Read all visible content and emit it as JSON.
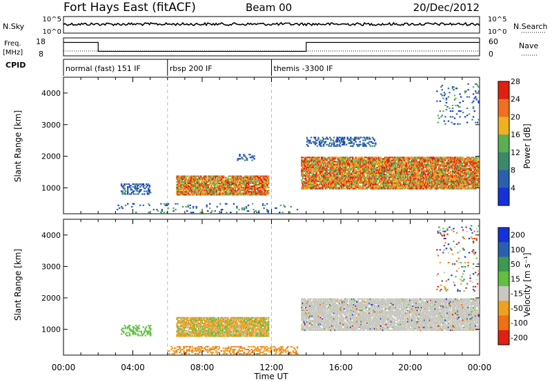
{
  "header": {
    "station": "Fort Hays East (fitACF)",
    "beam": "Beam 00",
    "date": "20/Dec/2012"
  },
  "top_panels": {
    "nsky_label": "N.Sky",
    "nsearch_label": "N.Search",
    "freq_label": "Freq.",
    "freq_unit": "[MHz]",
    "nave_label": "Nave",
    "cpid_label": "CPID",
    "nsky_ticks": [
      "10^5",
      "10^0"
    ],
    "nsearch_ticks": [
      "10^5",
      "10^0"
    ],
    "freq_ticks": [
      "18",
      "8"
    ],
    "nave_ticks": [
      "60",
      "0"
    ],
    "freq_steps": [
      {
        "start": 0,
        "end": 2,
        "level": 0.75
      },
      {
        "start": 2,
        "end": 14,
        "level": 0.25
      },
      {
        "start": 14,
        "end": 24,
        "level": 0.75
      }
    ]
  },
  "cpid_segments": [
    {
      "start_hour": 0,
      "label": "normal (fast) 151 IF"
    },
    {
      "start_hour": 6,
      "label": "rbsp 200 IF"
    },
    {
      "start_hour": 12,
      "label": "themis -3300 IF"
    }
  ],
  "chart_data": [
    {
      "type": "heatmap",
      "name": "power",
      "ylabel": "Slant Range [km]",
      "xlabel": "Time UT",
      "xlim": [
        0,
        24
      ],
      "ylim": [
        180,
        4500
      ],
      "yticks": [
        "1000",
        "2000",
        "3000",
        "4000"
      ],
      "xticks": [
        "00:00",
        "04:00",
        "08:00",
        "12:00",
        "16:00",
        "20:00",
        "00:00"
      ],
      "colorbar_label": "Power [dB]",
      "colorbar_ticks": [
        "4",
        "8",
        "12",
        "16",
        "20",
        "24",
        "28"
      ],
      "colors": [
        "#1432d8",
        "#2a60b0",
        "#3a8a6a",
        "#5ab050",
        "#f0b020",
        "#f07020",
        "#e02010"
      ],
      "regions": [
        {
          "t0": 6.5,
          "t1": 11.8,
          "r0": 760,
          "r1": 1350,
          "intensity": "high"
        },
        {
          "t0": 13.7,
          "t1": 23.9,
          "r0": 950,
          "r1": 1950,
          "intensity": "high"
        },
        {
          "t0": 3.3,
          "t1": 5.0,
          "r0": 780,
          "r1": 1100,
          "intensity": "low"
        },
        {
          "t0": 10.0,
          "t1": 11.0,
          "r0": 1850,
          "r1": 2050,
          "intensity": "low"
        },
        {
          "t0": 14.0,
          "t1": 18.0,
          "r0": 2300,
          "r1": 2600,
          "intensity": "low"
        },
        {
          "t0": 21.5,
          "t1": 23.9,
          "r0": 3000,
          "r1": 4300,
          "intensity": "sparse"
        },
        {
          "t0": 3.0,
          "t1": 13.5,
          "r0": 200,
          "r1": 500,
          "intensity": "sparse"
        }
      ]
    },
    {
      "type": "heatmap",
      "name": "velocity",
      "ylabel": "Slant Range [km]",
      "xlabel": "Time UT",
      "xlim": [
        0,
        24
      ],
      "ylim": [
        180,
        4500
      ],
      "yticks": [
        "1000",
        "2000",
        "3000",
        "4000"
      ],
      "xticks": [
        "00:00",
        "04:00",
        "08:00",
        "12:00",
        "16:00",
        "20:00",
        "00:00"
      ],
      "colorbar_label": "Velocity [m s⁻¹]",
      "colorbar_ticks": [
        "200",
        "100",
        "50",
        "15",
        "-15",
        "-50",
        "-100",
        "-200"
      ],
      "colors": [
        "#1432d8",
        "#2a60b0",
        "#3a9a50",
        "#60c040",
        "#c8c8c0",
        "#f0a020",
        "#f07010",
        "#e02010"
      ],
      "regions": [
        {
          "t0": 6.5,
          "t1": 11.8,
          "r0": 760,
          "r1": 1350,
          "mode": "orange-green"
        },
        {
          "t0": 13.7,
          "t1": 23.9,
          "r0": 950,
          "r1": 1950,
          "mode": "gray"
        },
        {
          "t0": 6.0,
          "t1": 13.5,
          "r0": 200,
          "r1": 450,
          "mode": "orange"
        },
        {
          "t0": 3.3,
          "t1": 5.0,
          "r0": 780,
          "r1": 1100,
          "mode": "green"
        },
        {
          "t0": 21.5,
          "t1": 23.9,
          "r0": 2200,
          "r1": 4300,
          "mode": "sparse"
        }
      ]
    }
  ]
}
